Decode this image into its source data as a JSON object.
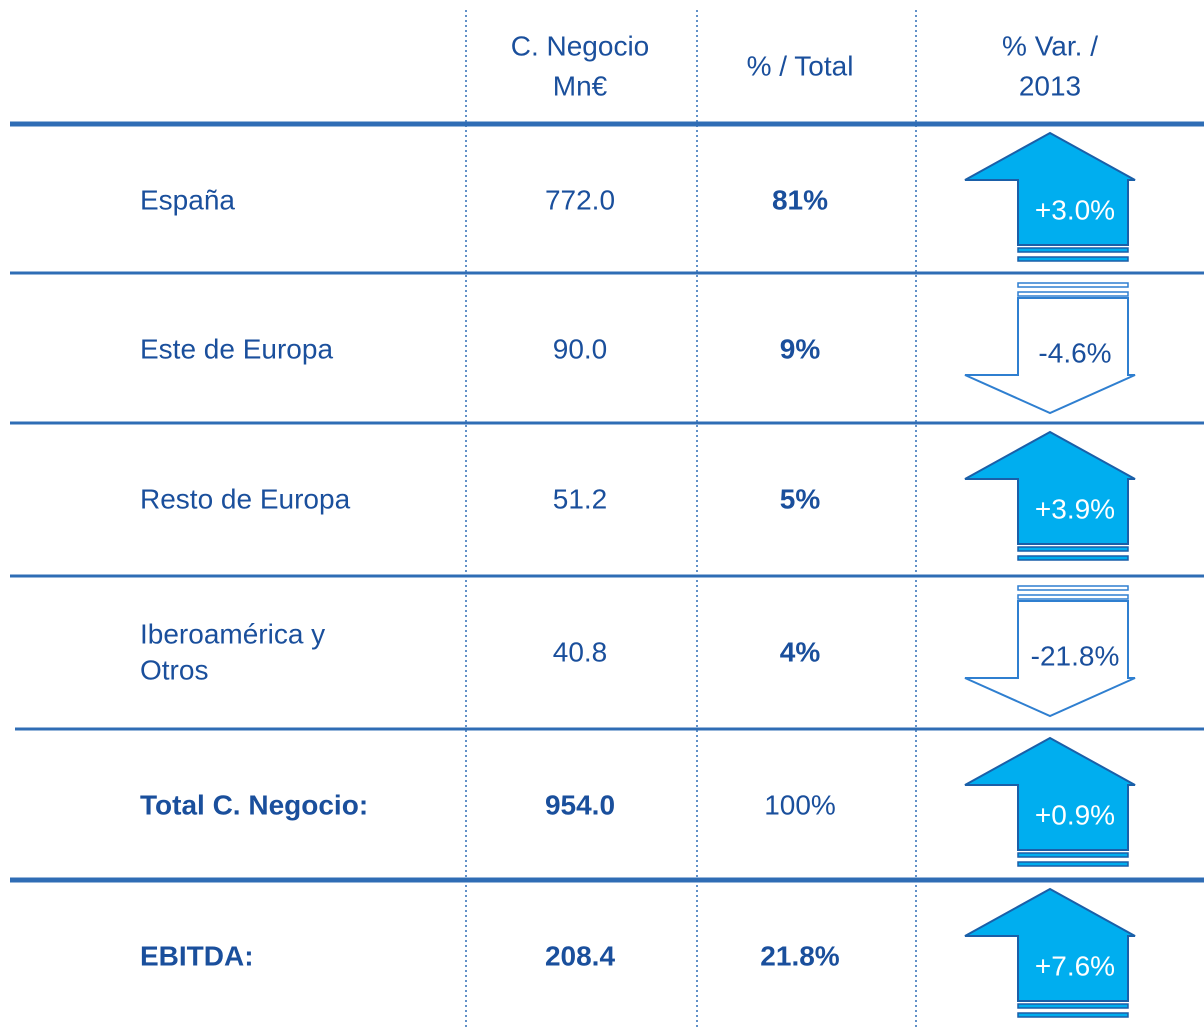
{
  "table": {
    "header": {
      "value": [
        "C. Negocio",
        "Mn€"
      ],
      "share": [
        "% / Total"
      ],
      "change": [
        "% Var. /",
        "2013"
      ]
    },
    "rows": [
      {
        "label": [
          "España"
        ],
        "value": "772.0",
        "share": "81%",
        "change": "+3.0%"
      },
      {
        "label": [
          "Este de Europa"
        ],
        "value": "90.0",
        "share": "9%",
        "change": "-4.6%"
      },
      {
        "label": [
          "Resto de Europa"
        ],
        "value": "51.2",
        "share": "5%",
        "change": "+3.9%"
      },
      {
        "label": [
          "Iberoamérica y",
          "Otros"
        ],
        "value": "40.8",
        "share": "4%",
        "change": "-21.8%"
      },
      {
        "label": [
          "Total C. Negocio:"
        ],
        "value": "954.0",
        "share": "100%",
        "change": "+0.9%"
      },
      {
        "label": [
          "EBITDA:"
        ],
        "value": "208.4",
        "share": "21.8%",
        "change": "+7.6%"
      }
    ]
  }
}
